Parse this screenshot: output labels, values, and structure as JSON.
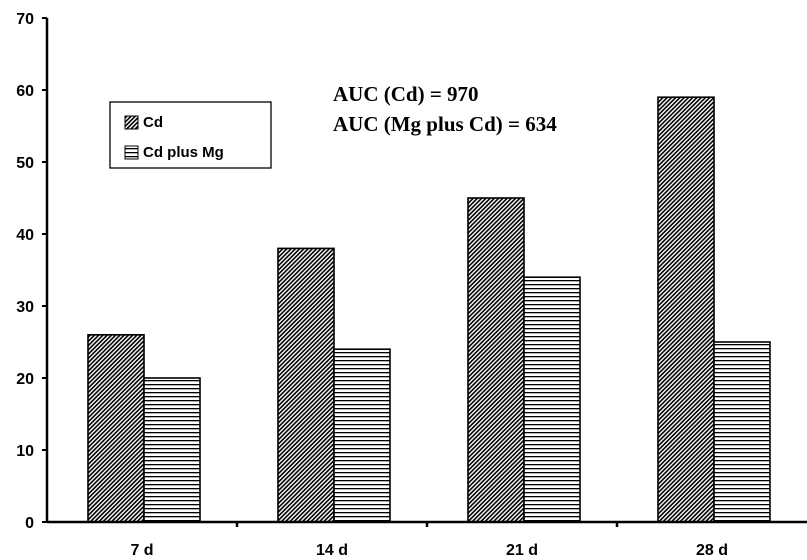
{
  "chart_data": {
    "type": "bar",
    "categories": [
      "7 d",
      "14 d",
      "21 d",
      "28 d"
    ],
    "series": [
      {
        "name": "Cd",
        "values": [
          26,
          38,
          45,
          59
        ],
        "pattern": "diagonal-dense"
      },
      {
        "name": "Cd plus Mg",
        "values": [
          20,
          24,
          34,
          25
        ],
        "pattern": "horizontal-lines"
      }
    ],
    "ylim": [
      0,
      70
    ],
    "yticks": [
      "0",
      "10",
      "20",
      "30",
      "40",
      "50",
      "60",
      "70"
    ],
    "xlabel": "",
    "ylabel": "",
    "title": "",
    "grid": false,
    "legend_position": "upper-left",
    "annotations": [
      "AUC (Cd) = 970",
      "AUC (Mg plus Cd) = 634"
    ]
  },
  "colors": {
    "stroke": "#000000",
    "background": "#ffffff"
  }
}
